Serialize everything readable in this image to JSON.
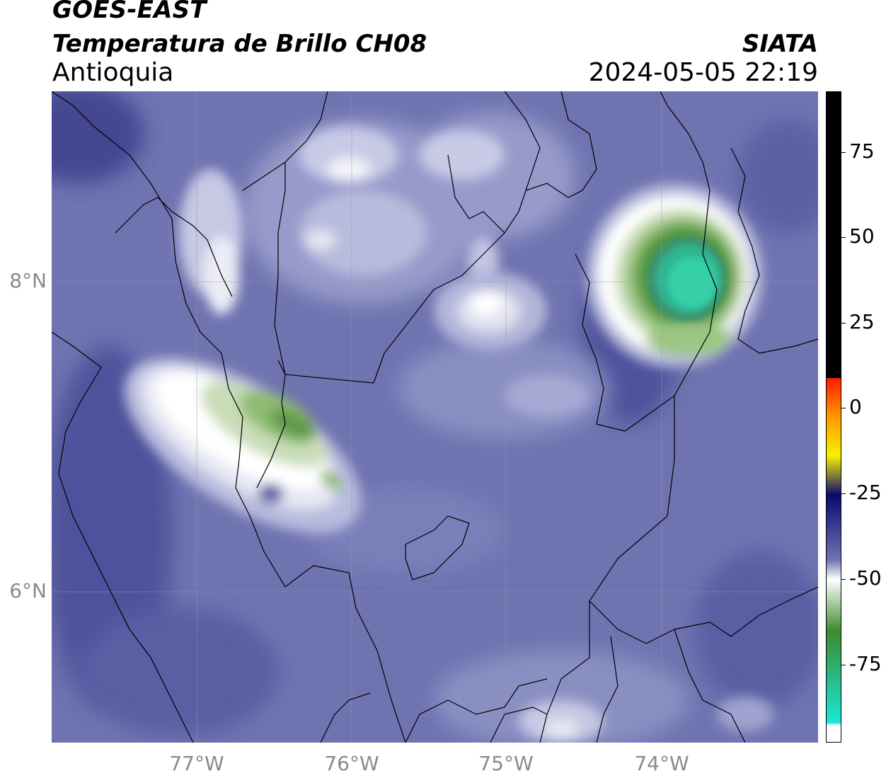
{
  "header": {
    "satellite": "GOES-EAST",
    "product": "Temperatura de Brillo CH08",
    "region": "Antioquia",
    "organization": "SIATA",
    "datetime": "2024-05-05 22:19"
  },
  "map": {
    "lat_labels": [
      {
        "text": "8°N",
        "value": 8
      },
      {
        "text": "6°N",
        "value": 6
      }
    ],
    "lon_labels": [
      {
        "text": "77°W",
        "value": -77
      },
      {
        "text": "76°W",
        "value": -76
      },
      {
        "text": "75°W",
        "value": -75
      },
      {
        "text": "74°W",
        "value": -74
      }
    ],
    "background_color": "#6f73b0",
    "cloud_features": [
      {
        "name": "northeast-convective-cell",
        "min_temp_c": -80,
        "color": "#3cbf8a"
      },
      {
        "name": "western-cloud-band",
        "min_temp_c": -65,
        "color": "#5f9a4a"
      },
      {
        "name": "central-north-clouds",
        "min_temp_c": -50,
        "color": "#e8e8f4"
      }
    ]
  },
  "colorbar": {
    "ticks": [
      {
        "text": "75",
        "value": 75
      },
      {
        "text": "50",
        "value": 50
      },
      {
        "text": "25",
        "value": 25
      },
      {
        "text": "0",
        "value": 0
      },
      {
        "text": "-25",
        "value": -25
      },
      {
        "text": "-50",
        "value": -50
      },
      {
        "text": "-75",
        "value": -75
      }
    ],
    "range": [
      -93,
      92
    ],
    "colors": {
      "warm_black": "#000000",
      "red": "#ff1a00",
      "orange": "#ff9a00",
      "yellow": "#f7f000",
      "navy": "#0a0a6e",
      "blue_grey": "#6f73b0",
      "white": "#ffffff",
      "green": "#3e8a2f",
      "cyan": "#19e7d8"
    }
  }
}
